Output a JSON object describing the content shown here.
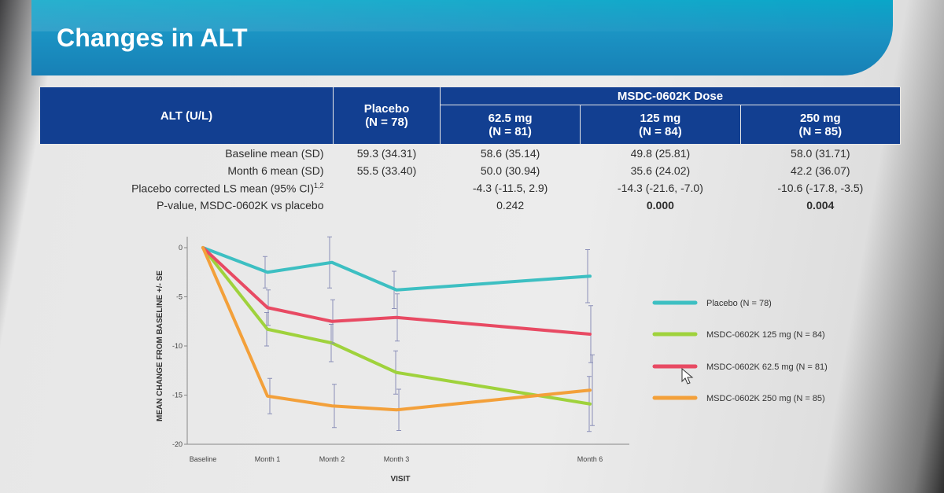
{
  "slide": {
    "title": "Changes in ALT"
  },
  "table": {
    "row_header": "ALT (U/L)",
    "placebo": {
      "label": "Placebo",
      "n": "(N = 78)"
    },
    "dose_header": "MSDC-0602K Dose",
    "doses": [
      {
        "label": "62.5 mg",
        "n": "(N = 81)"
      },
      {
        "label": "125 mg",
        "n": "(N = 84)"
      },
      {
        "label": "250 mg",
        "n": "(N = 85)"
      }
    ],
    "rows": [
      {
        "label": "Baseline mean (SD)",
        "placebo": "59.3 (34.31)",
        "values": [
          "58.6 (35.14)",
          "49.8 (25.81)",
          "58.0 (31.71)"
        ]
      },
      {
        "label": "Month 6 mean (SD)",
        "placebo": "55.5 (33.40)",
        "values": [
          "50.0 (30.94)",
          "35.6 (24.02)",
          "42.2 (36.07)"
        ]
      },
      {
        "label": "Placebo corrected  LS mean (95% CI)",
        "label_sup": "1,2",
        "placebo": "",
        "values": [
          "-4.3 (-11.5, 2.9)",
          "-14.3 (-21.6, -7.0)",
          "-10.6 (-17.8, -3.5)"
        ]
      },
      {
        "label": "P-value, MSDC-0602K vs placebo",
        "placebo": "",
        "values": [
          "0.242",
          "0.000",
          "0.004"
        ],
        "bold": [
          false,
          true,
          true
        ]
      }
    ]
  },
  "chart_data": {
    "type": "line",
    "xlabel": "VISIT",
    "ylabel": "MEAN CHANGE FROM BASELINE +/- SE",
    "x_ticks": [
      "Baseline",
      "Month 1",
      "Month 2",
      "Month 3",
      "Month 6"
    ],
    "x_positions": [
      0,
      1,
      2,
      3,
      6
    ],
    "ylim": [
      -20,
      0
    ],
    "y_ticks": [
      0,
      -5,
      -10,
      -15,
      -20
    ],
    "grid": false,
    "legend_position": "right",
    "series": [
      {
        "name": "Placebo (N = 78)",
        "color": "#3dbfc2",
        "x": [
          0,
          1,
          2,
          3,
          6
        ],
        "y": [
          0,
          -2.5,
          -1.5,
          -4.3,
          -2.9
        ],
        "se": [
          0,
          1.6,
          2.6,
          1.9,
          2.7
        ]
      },
      {
        "name": "MSDC-0602K 125 mg (N = 84)",
        "color": "#9fd23c",
        "x": [
          0,
          1,
          2,
          3,
          6
        ],
        "y": [
          0,
          -8.3,
          -9.7,
          -12.7,
          -15.9
        ],
        "se": [
          0,
          1.7,
          1.9,
          2.2,
          2.8
        ]
      },
      {
        "name": "MSDC-0602K 62.5 mg (N = 81)",
        "color": "#e84a63",
        "x": [
          0,
          1,
          2,
          3,
          6
        ],
        "y": [
          0,
          -6.1,
          -7.5,
          -7.1,
          -8.8
        ],
        "se": [
          0,
          1.8,
          2.2,
          2.4,
          2.9
        ]
      },
      {
        "name": "MSDC-0602K 250 mg (N = 85)",
        "color": "#f3a03a",
        "x": [
          0,
          1,
          2,
          3,
          6
        ],
        "y": [
          0,
          -15.1,
          -16.1,
          -16.5,
          -14.5
        ],
        "se": [
          0,
          1.8,
          2.2,
          2.1,
          3.6
        ]
      }
    ]
  }
}
